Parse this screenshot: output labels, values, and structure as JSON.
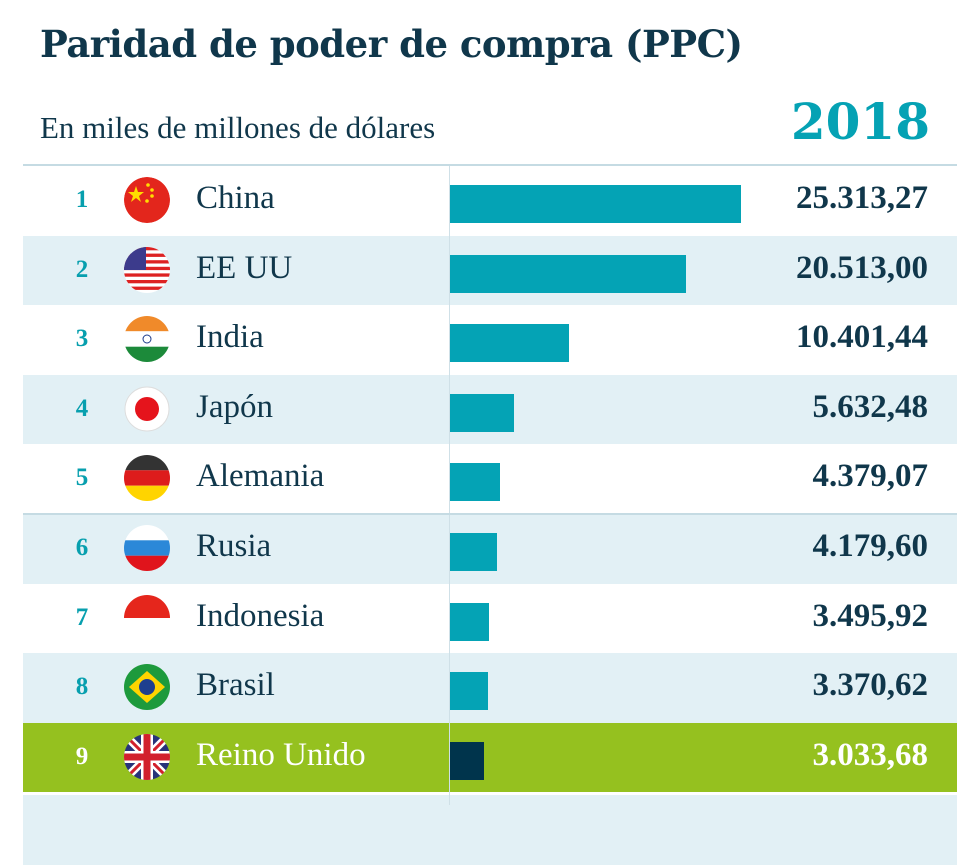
{
  "title": "Paridad de poder de compra (PPC)",
  "subtitle": "En miles de millones de dólares",
  "year": "2018",
  "colors": {
    "bar": "#04a3b5",
    "highlight_bar": "#00344c",
    "highlight_row": "#95c11f",
    "rank": "#079fae",
    "text": "#10374b"
  },
  "chart_data": {
    "type": "bar",
    "orientation": "horizontal",
    "title": "Paridad de poder de compra (PPC)",
    "subtitle": "En miles de millones de dólares",
    "ranks": [
      "1",
      "2",
      "3",
      "4",
      "5",
      "6",
      "7",
      "8",
      "9"
    ],
    "categories": [
      "China",
      "EE UU",
      "India",
      "Japón",
      "Alemania",
      "Rusia",
      "Indonesia",
      "Brasil",
      "Reino Unido"
    ],
    "values": [
      25313.27,
      20513.0,
      10401.44,
      5632.48,
      4379.07,
      4179.6,
      3495.92,
      3370.62,
      3033.68
    ],
    "labels": [
      "25.313,27",
      "20.513,00",
      "10.401,44",
      "5.632,48",
      "4.379,07",
      "4.179,60",
      "3.495,92",
      "3.370,62",
      "3.033,68"
    ],
    "flags": [
      "china-flag",
      "usa-flag",
      "india-flag",
      "japan-flag",
      "germany-flag",
      "russia-flag",
      "indonesia-flag",
      "brazil-flag",
      "uk-flag"
    ],
    "highlight": "Reino Unido",
    "xlim": [
      0,
      25313.27
    ]
  }
}
